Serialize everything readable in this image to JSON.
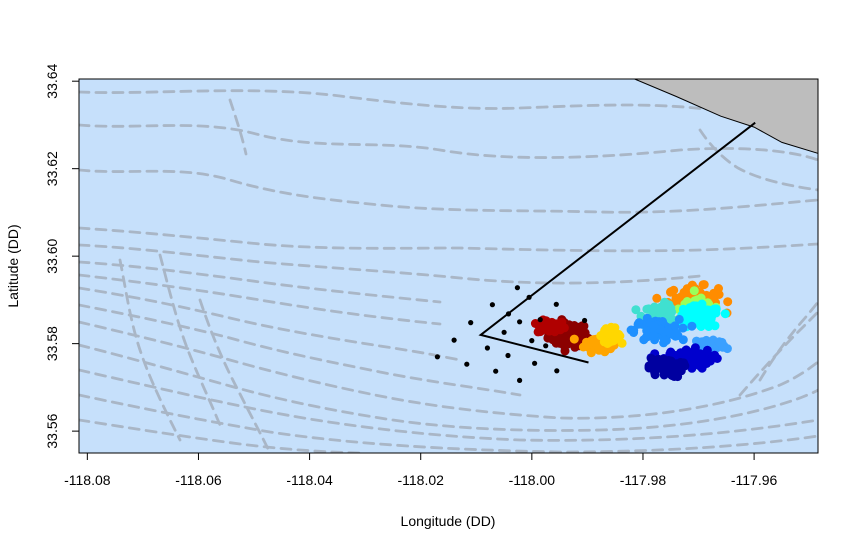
{
  "chart_data": {
    "type": "scatter",
    "title": "",
    "xlabel": "Longitude (DD)",
    "ylabel": "Latitude (DD)",
    "xlim": [
      -118.0815,
      -117.9485
    ],
    "ylim": [
      33.555,
      33.6405
    ],
    "xticks": [
      -118.08,
      -118.06,
      -118.04,
      -118.02,
      -118.0,
      -117.98,
      -117.96
    ],
    "xtick_labels": [
      "-118.08",
      "-118.06",
      "-118.04",
      "-118.02",
      "-118.00",
      "-117.98",
      "-117.96"
    ],
    "yticks": [
      33.56,
      33.58,
      33.6,
      33.62,
      33.64
    ],
    "ytick_labels": [
      "33.56",
      "33.58",
      "33.60",
      "33.62",
      "33.64"
    ],
    "grid": false,
    "legend": "none",
    "colors": {
      "water": "#c6e0fb",
      "land": "#bdbdbd",
      "bathymetry": "#a9b6c6",
      "track": "#000000",
      "receiver": "#000000"
    },
    "land_polygon": [
      [
        -117.9815,
        33.6405
      ],
      [
        -117.974,
        33.6365
      ],
      [
        -117.966,
        33.632
      ],
      [
        -117.96,
        33.6295
      ],
      [
        -117.955,
        33.626
      ],
      [
        -117.9485,
        33.6235
      ],
      [
        -117.9485,
        33.6405
      ]
    ],
    "track_line": [
      [
        -117.9598,
        33.6305
      ],
      [
        -118.0092,
        33.582
      ],
      [
        -117.9898,
        33.5757
      ]
    ],
    "receivers": [
      [
        -118.0026,
        33.5928
      ],
      [
        -118.0005,
        33.5906
      ],
      [
        -117.9956,
        33.589
      ],
      [
        -118.0071,
        33.5889
      ],
      [
        -118.0042,
        33.5868
      ],
      [
        -118.011,
        33.5848
      ],
      [
        -118.0022,
        33.585
      ],
      [
        -117.9985,
        33.5855
      ],
      [
        -117.9905,
        33.5853
      ],
      [
        -118.014,
        33.5808
      ],
      [
        -118.005,
        33.5826
      ],
      [
        -118.0,
        33.5807
      ],
      [
        -118.008,
        33.579
      ],
      [
        -117.9975,
        33.5795
      ],
      [
        -118.0043,
        33.5773
      ],
      [
        -118.017,
        33.577
      ],
      [
        -118.0117,
        33.5753
      ],
      [
        -117.9995,
        33.5755
      ],
      [
        -117.9955,
        33.5738
      ],
      [
        -118.0065,
        33.5737
      ],
      [
        -118.0022,
        33.5716
      ]
    ],
    "positions": [
      {
        "color": "#8b0000",
        "center": [
          -117.9935,
          33.582
        ],
        "spread": [
          0.0035,
          0.0028
        ],
        "count": 90
      },
      {
        "color": "#b00000",
        "center": [
          -117.9965,
          33.5838
        ],
        "spread": [
          0.0025,
          0.0015
        ],
        "count": 40
      },
      {
        "color": "#ffa500",
        "center": [
          -117.988,
          33.58
        ],
        "spread": [
          0.0025,
          0.0018
        ],
        "count": 60
      },
      {
        "color": "#ff8c00",
        "center": [
          -117.971,
          33.59
        ],
        "spread": [
          0.0045,
          0.003
        ],
        "count": 90
      },
      {
        "color": "#ffd700",
        "center": [
          -117.986,
          33.582
        ],
        "spread": [
          0.002,
          0.0015
        ],
        "count": 35
      },
      {
        "color": "#9aff5a",
        "center": [
          -117.97,
          33.588
        ],
        "spread": [
          0.0035,
          0.0025
        ],
        "count": 60
      },
      {
        "color": "#00ffff",
        "center": [
          -117.97,
          33.586
        ],
        "spread": [
          0.004,
          0.0025
        ],
        "count": 90
      },
      {
        "color": "#40e0d0",
        "center": [
          -117.977,
          33.5865
        ],
        "spread": [
          0.003,
          0.0025
        ],
        "count": 60
      },
      {
        "color": "#1e90ff",
        "center": [
          -117.9775,
          33.583
        ],
        "spread": [
          0.004,
          0.0025
        ],
        "count": 90
      },
      {
        "color": "#3aa0ff",
        "center": [
          -117.968,
          33.5795
        ],
        "spread": [
          0.003,
          0.002
        ],
        "count": 50
      },
      {
        "color": "#0000cd",
        "center": [
          -117.972,
          33.5765
        ],
        "spread": [
          0.0045,
          0.0022
        ],
        "count": 100
      },
      {
        "color": "#0000a0",
        "center": [
          -117.976,
          33.5745
        ],
        "spread": [
          0.003,
          0.0022
        ],
        "count": 60
      }
    ]
  }
}
